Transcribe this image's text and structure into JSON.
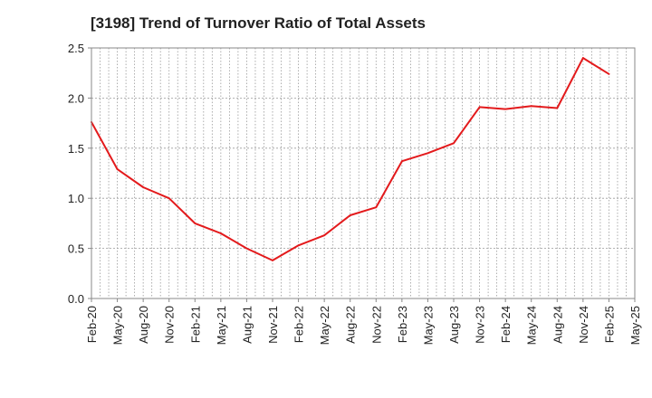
{
  "chart_data": {
    "type": "line",
    "title": "[3198]  Trend of Turnover Ratio of Total Assets",
    "xlabel": "",
    "ylabel": "",
    "ylim": [
      0,
      2.5
    ],
    "yticks": [
      "0.0",
      "0.5",
      "1.0",
      "1.5",
      "2.0",
      "2.5"
    ],
    "x_tick_labels": [
      "Feb-20",
      "May-20",
      "Aug-20",
      "Nov-20",
      "Feb-21",
      "May-21",
      "Aug-21",
      "Nov-21",
      "Feb-22",
      "May-22",
      "Aug-22",
      "Nov-22",
      "Feb-23",
      "May-23",
      "Aug-23",
      "Nov-23",
      "Feb-24",
      "May-24",
      "Aug-24",
      "Nov-24",
      "Feb-25",
      "May-25"
    ],
    "x": [
      "Feb-20",
      "May-20",
      "Aug-20",
      "Nov-20",
      "Feb-21",
      "May-21",
      "Aug-21",
      "Nov-21",
      "Feb-22",
      "May-22",
      "Aug-22",
      "Nov-22",
      "Feb-23",
      "May-23",
      "Aug-23",
      "Nov-23",
      "Feb-24",
      "May-24",
      "Aug-24",
      "Nov-24",
      "Feb-25"
    ],
    "series": [
      {
        "name": "",
        "color": "#e31a1c",
        "values": [
          1.76,
          1.29,
          1.11,
          1.0,
          0.75,
          0.65,
          0.5,
          0.38,
          0.53,
          0.63,
          0.83,
          0.91,
          1.37,
          1.45,
          1.55,
          1.91,
          1.89,
          1.92,
          1.9,
          2.4,
          2.24
        ]
      }
    ],
    "grid": true,
    "grid_style": "dotted",
    "legend": "none"
  }
}
